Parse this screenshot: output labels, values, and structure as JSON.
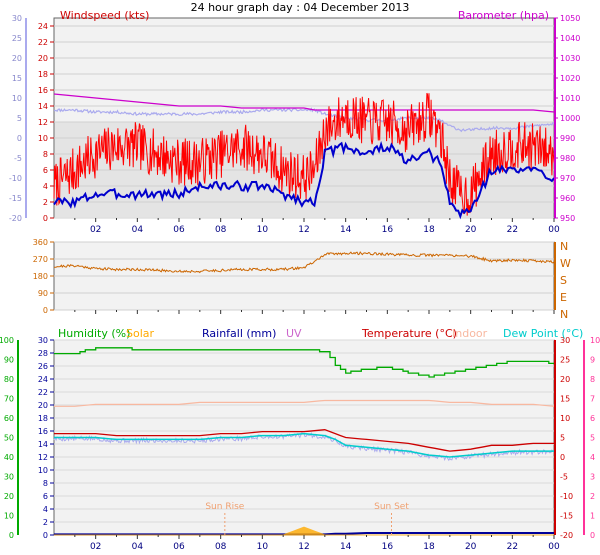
{
  "page": {
    "title": "24 hour graph day : 04 December 2013"
  },
  "colors": {
    "windspeed": "#ff0000",
    "gust": "#ff0000",
    "avg_wind": "#0000cc",
    "temperature_top": "#aaaaee",
    "barometer": "#cc00cc",
    "wind_direction": "#cc6600",
    "humidity": "#00aa00",
    "solar": "#ffaa00",
    "rainfall": "#000099",
    "uv": "#cc66cc",
    "temperature": "#cc0000",
    "indoor": "#f8b8a0",
    "dew_point": "#00cccc",
    "humidity_axis": "#00aa00",
    "temp_axis": "#cc0000",
    "uv_axis": "#ff3399"
  },
  "chart_data": [
    {
      "type": "line",
      "name": "wind-barometer",
      "x_ticks": [
        "02",
        "04",
        "06",
        "08",
        "10",
        "12",
        "14",
        "16",
        "18",
        "20",
        "22",
        "00"
      ],
      "legend": {
        "left": "Windspeed (kts)",
        "right": "Barometer (hpa)"
      },
      "y_left_ticks": [
        "0",
        "2",
        "4",
        "6",
        "8",
        "10",
        "12",
        "14",
        "16",
        "18",
        "20",
        "22",
        "24"
      ],
      "y_left_outer_ticks": [
        "-20",
        "-15",
        "-10",
        "-5",
        "0",
        "5",
        "10",
        "15",
        "20",
        "25",
        "30"
      ],
      "y_right_ticks": [
        "950",
        "960",
        "970",
        "980",
        "990",
        "1000",
        "1010",
        "1020",
        "1030",
        "1040",
        "1050"
      ],
      "ylim_wind": [
        0,
        25
      ],
      "ylim_barometer": [
        950,
        1050
      ],
      "ylim_outer": [
        -20,
        30
      ],
      "x_hours": [
        0,
        1,
        2,
        3,
        4,
        5,
        6,
        7,
        8,
        9,
        10,
        11,
        12,
        12.5,
        13,
        14,
        15,
        16,
        17,
        18,
        18.5,
        19,
        19.5,
        20,
        21,
        22,
        23,
        24
      ],
      "series": [
        {
          "key": "gust",
          "values": [
            4,
            6,
            8,
            9,
            9,
            8,
            7,
            7,
            8,
            9,
            8,
            6,
            5,
            6,
            11,
            13,
            12,
            12,
            11,
            13,
            11,
            5,
            3,
            3,
            8,
            9,
            9,
            8
          ]
        },
        {
          "key": "avg_wind",
          "values": [
            2,
            2,
            3,
            3,
            3,
            3,
            3,
            4,
            4,
            4,
            4,
            3,
            2,
            2,
            8,
            9,
            8,
            9,
            7,
            8,
            7,
            2,
            0.5,
            1,
            6,
            6,
            6,
            5
          ]
        },
        {
          "key": "barometer",
          "values": [
            1012,
            1011,
            1010,
            1009,
            1008,
            1007,
            1006,
            1006,
            1006,
            1005,
            1005,
            1005,
            1005,
            1004,
            1004,
            1004,
            1004,
            1004,
            1004,
            1004,
            1004,
            1004,
            1004,
            1004,
            1004,
            1004,
            1004,
            1003
          ]
        },
        {
          "key": "temperature_top",
          "values": [
            7,
            7,
            6.5,
            6.5,
            6,
            6,
            6,
            6,
            6.5,
            6.5,
            7,
            7,
            7,
            7,
            6,
            5,
            4.5,
            4.5,
            5,
            5,
            4.5,
            3,
            2,
            2,
            2.5,
            2.5,
            3,
            3.5
          ]
        }
      ]
    },
    {
      "type": "line",
      "name": "wind-direction",
      "y_ticks": [
        "360",
        "270",
        "180",
        "90",
        "0"
      ],
      "compass": [
        "N",
        "W",
        "S",
        "E",
        "N"
      ],
      "ylim": [
        0,
        360
      ],
      "x_hours": [
        0,
        1,
        2,
        3,
        4,
        5,
        6,
        7,
        8,
        9,
        10,
        11,
        12,
        12.5,
        13,
        14,
        15,
        16,
        17,
        18,
        19,
        20,
        21,
        22,
        23,
        24
      ],
      "series": [
        {
          "key": "wind_direction",
          "values": [
            230,
            235,
            220,
            215,
            215,
            210,
            205,
            205,
            210,
            215,
            215,
            215,
            225,
            255,
            295,
            300,
            300,
            295,
            290,
            290,
            290,
            285,
            260,
            265,
            260,
            255
          ]
        }
      ]
    },
    {
      "type": "line",
      "name": "humidity-temperature",
      "legend": [
        "Humidity (%)",
        "Solar",
        "Rainfall (mm)",
        "UV",
        "Temperature (°C)",
        "Indoor",
        "Dew Point (°C)"
      ],
      "y_humidity_ticks": [
        "0",
        "10",
        "20",
        "30",
        "40",
        "50",
        "60",
        "70",
        "80",
        "90",
        "100"
      ],
      "y_rain_ticks": [
        "0",
        "2",
        "4",
        "6",
        "8",
        "10",
        "12",
        "14",
        "16",
        "18",
        "20",
        "22",
        "24",
        "26",
        "28",
        "30"
      ],
      "y_temp_ticks": [
        "-20",
        "-15",
        "-10",
        "-5",
        "0",
        "5",
        "10",
        "15",
        "20",
        "25",
        "30"
      ],
      "y_uv_ticks": [
        "0",
        "1",
        "2",
        "3",
        "4",
        "5",
        "6",
        "7",
        "8",
        "9",
        "10"
      ],
      "ylim_humidity": [
        0,
        100
      ],
      "ylim_temperature": [
        -20,
        30
      ],
      "annotations": [
        "Sun Rise",
        "Sun Set"
      ],
      "x_hours": [
        0,
        1,
        2,
        3,
        4,
        5,
        6,
        7,
        8,
        9,
        10,
        11,
        12,
        13,
        13.5,
        14,
        15,
        16,
        17,
        18,
        19,
        20,
        21,
        22,
        23,
        24
      ],
      "series": [
        {
          "key": "humidity",
          "values": [
            93,
            93,
            96,
            96,
            95,
            95,
            95,
            95,
            95,
            95,
            95,
            95,
            95,
            94,
            87,
            83,
            85,
            86,
            83,
            81,
            83,
            85,
            87,
            89,
            89,
            88
          ]
        },
        {
          "key": "temperature",
          "values": [
            6,
            6,
            6,
            5.5,
            5.5,
            5.5,
            5.5,
            5.5,
            6,
            6,
            6.5,
            6.5,
            6.5,
            7,
            6,
            5,
            4.5,
            4,
            3.5,
            2.5,
            1.5,
            2,
            3,
            3,
            3.5,
            3.5
          ]
        },
        {
          "key": "dew_point",
          "values": [
            5,
            5,
            5,
            4.5,
            4.5,
            4.5,
            4.5,
            4.5,
            5,
            5,
            5.5,
            5.5,
            6,
            5.5,
            4.5,
            3,
            2.5,
            2,
            1.5,
            0.5,
            0,
            0.5,
            1,
            1.5,
            1.5,
            1.5
          ]
        },
        {
          "key": "indoor",
          "values": [
            13,
            13,
            13.5,
            13.5,
            13.5,
            13.5,
            13.5,
            14,
            14,
            14,
            14,
            14,
            14,
            14.5,
            14.5,
            14.5,
            14.5,
            14.5,
            14.5,
            14.5,
            14,
            14,
            13.5,
            13.5,
            13.5,
            13
          ]
        },
        {
          "key": "rainfall",
          "values": [
            0.1,
            0.1,
            0.1,
            0.1,
            0.1,
            0.1,
            0.1,
            0.1,
            0.1,
            0.1,
            0.1,
            0.1,
            0.1,
            0.1,
            0.2,
            0.2,
            0.3,
            0.3,
            0.3,
            0.3,
            0.3,
            0.3,
            0.3,
            0.3,
            0.3,
            0.3
          ]
        },
        {
          "key": "solar",
          "values": [
            0,
            0,
            0,
            0,
            0,
            0,
            0,
            0,
            0,
            0,
            0,
            0,
            6,
            0,
            0,
            0,
            0,
            0,
            0,
            0,
            0,
            0,
            0,
            0,
            0,
            0
          ]
        }
      ]
    }
  ]
}
